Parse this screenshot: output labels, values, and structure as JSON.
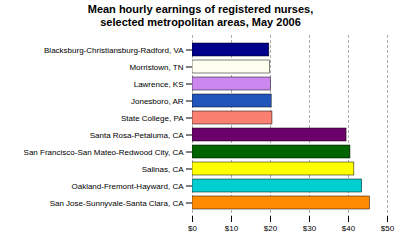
{
  "chart_data": {
    "type": "bar",
    "orientation": "horizontal",
    "title": "Mean hourly earnings of registered nurses,\nselected metropolitan areas, May 2006",
    "categories": [
      "San Jose-Sunnyvale-Santa Clara, CA",
      "Oakland-Fremont-Hayward, CA",
      "Salinas, CA",
      "San Francisco-San Mateo-Redwood City, CA",
      "Santa Rosa-Petaluma, CA",
      "State College, PA",
      "Jonesboro, AR",
      "Lawrence, KS",
      "Morristown, TN",
      "Blacksburg-Christiansburg-Radford, VA"
    ],
    "values": [
      45.5,
      43.5,
      41.5,
      40.5,
      39.5,
      20.5,
      20.3,
      20.1,
      19.9,
      19.7
    ],
    "colors": [
      "#FF8C00",
      "#00CED1",
      "#FFFF00",
      "#006400",
      "#6B006B",
      "#FA8072",
      "#2255BB",
      "#CC88EE",
      "#FFFFF0",
      "#00008B"
    ],
    "xlim": [
      0,
      50
    ],
    "xticks": [
      {
        "value": 0,
        "label": "$0"
      },
      {
        "value": 10,
        "label": "$10"
      },
      {
        "value": 20,
        "label": "$20"
      },
      {
        "value": 30,
        "label": "$30"
      },
      {
        "value": 40,
        "label": "$40"
      },
      {
        "value": 50,
        "label": "$50"
      }
    ],
    "grid": true
  }
}
